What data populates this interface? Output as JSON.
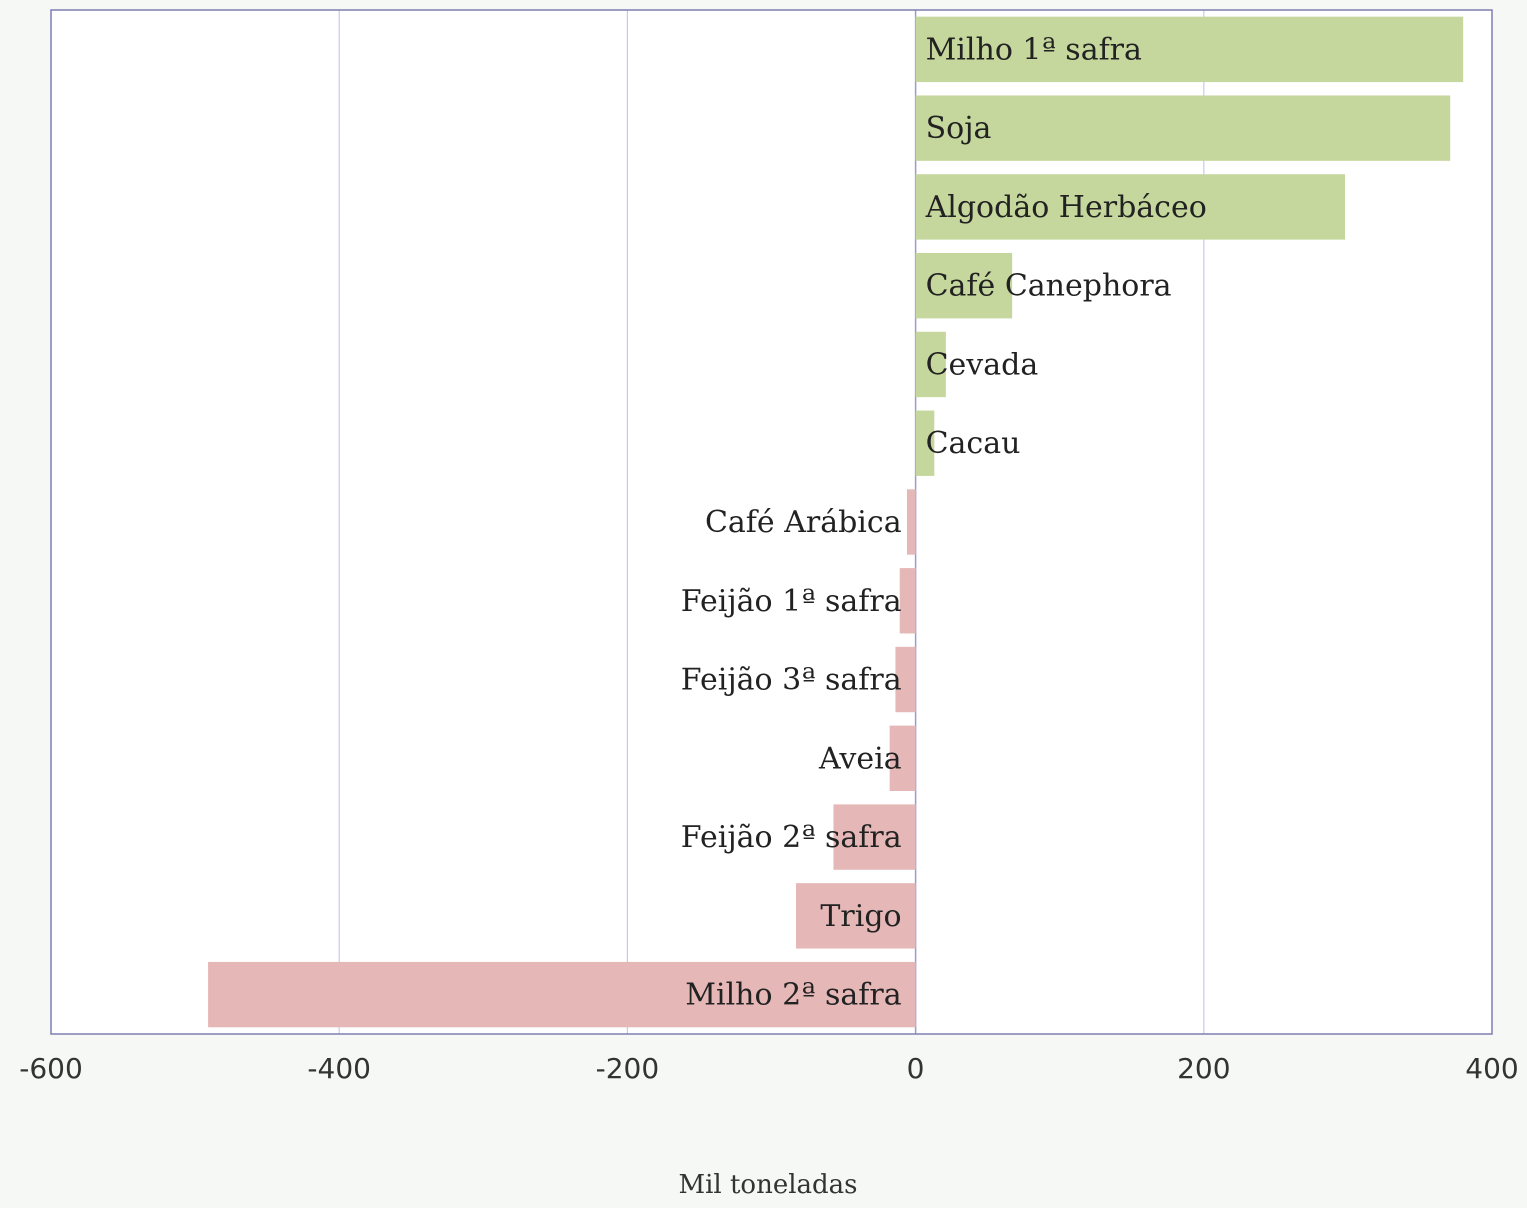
{
  "chart_data": {
    "type": "bar",
    "orientation": "horizontal",
    "categories": [
      "Milho 1ª safra",
      "Soja",
      "Algodão Herbáceo",
      "Café Canephora",
      "Cevada",
      "Cacau",
      "Café Arábica",
      "Feijão 1ª safra",
      "Feijão 3ª safra",
      "Aveia",
      "Feijão 2ª safra",
      "Trigo",
      "Milho 2ª safra"
    ],
    "values": [
      380,
      371,
      298,
      67,
      21,
      13,
      -6,
      -11,
      -14,
      -18,
      -57,
      -83,
      -491
    ],
    "xlim": [
      -600,
      400
    ],
    "xticks": [
      "-600",
      "-400",
      "-200",
      "0",
      "200",
      "400"
    ],
    "xlabel": "Mil toneladas",
    "grid": "vertical",
    "colors": {
      "positive": "#c5d79c",
      "negative": "#e5b8b7",
      "grid": "#c8c8f0",
      "frame": "#7f7fb0",
      "plot_background": "#ffffff"
    }
  }
}
